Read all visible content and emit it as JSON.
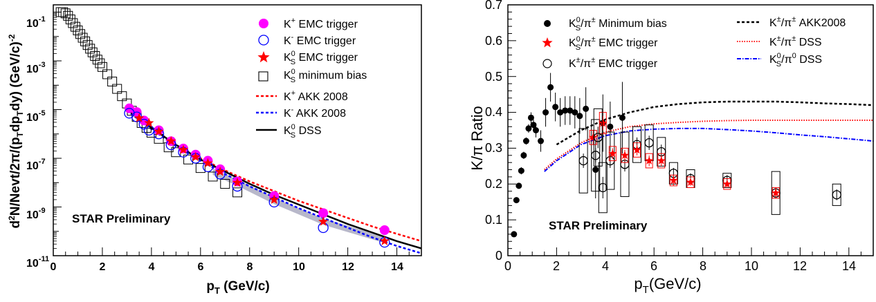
{
  "chart_data": [
    {
      "type": "scatter",
      "ylabel": "d²N/Nevt/2π/(p_T dp_T dy) (GeV/c)^-2",
      "ylabel_parts": {
        "main": "d",
        "sup2": "2",
        "n": "N/Nevt/2",
        "pi": "π",
        "slash": "/(p",
        "t1": "T",
        "dp": "dp",
        "t2": "T",
        "dy": "dy) (GeV/c)",
        "neg2": "-2"
      },
      "xlabel_parts": {
        "p": "p",
        "t": "T",
        "units": " (GeV/c)"
      },
      "xlim": [
        0,
        15
      ],
      "ylim_log10": [
        -11,
        -0.7
      ],
      "ylog": true,
      "xticks": [
        "0",
        "2",
        "4",
        "6",
        "8",
        "10",
        "12",
        "14"
      ],
      "yticks": [
        {
          "base": "10",
          "exp": "-1"
        },
        {
          "base": "10",
          "exp": "-3"
        },
        {
          "base": "10",
          "exp": "-5"
        },
        {
          "base": "10",
          "exp": "-7"
        },
        {
          "base": "10",
          "exp": "-9"
        },
        {
          "base": "10",
          "exp": "-11"
        }
      ],
      "annotation": "STAR Preliminary",
      "legend": {
        "placement": "top-right",
        "entries": [
          {
            "key": "kplus",
            "pre": "K",
            "sup": "+",
            "sub": "",
            "post": " EMC trigger"
          },
          {
            "key": "kminus",
            "pre": "K",
            "sup": "-",
            "sub": "",
            "post": " EMC trigger"
          },
          {
            "key": "k0s",
            "pre": "K",
            "sup": "0",
            "sub": "S",
            "post": " EMC trigger"
          },
          {
            "key": "k0mb",
            "pre": "K",
            "sup": "0",
            "sub": "S",
            "post": " minimum bias"
          },
          {
            "key": "akk_plus",
            "pre": "K",
            "sup": "+",
            "sub": "",
            "post": " AKK 2008"
          },
          {
            "key": "akk_minus",
            "pre": "K",
            "sup": "-",
            "sub": "",
            "post": " AKK 2008"
          },
          {
            "key": "dss",
            "pre": "K",
            "sup": "0",
            "sub": "S",
            "post": " DSS"
          }
        ]
      },
      "series": [
        {
          "key": "k0mb",
          "marker": "open-square",
          "color": "#000000",
          "x": [
            0.3,
            0.4,
            0.5,
            0.6,
            0.7,
            0.8,
            0.9,
            1.0,
            1.1,
            1.2,
            1.3,
            1.4,
            1.5,
            1.6,
            1.7,
            1.8,
            1.9,
            2.0,
            2.2,
            2.4,
            2.6,
            2.8,
            3.0,
            3.2,
            3.4,
            3.6,
            3.8,
            4.0,
            4.3,
            4.7,
            5.0,
            5.5,
            6.0,
            6.5,
            7.0,
            7.5
          ],
          "log10y": [
            -1.0,
            -1.0,
            -1.05,
            -1.15,
            -1.3,
            -1.45,
            -1.6,
            -1.75,
            -1.9,
            -2.05,
            -2.2,
            -2.35,
            -2.5,
            -2.65,
            -2.8,
            -2.95,
            -3.1,
            -3.25,
            -3.55,
            -3.85,
            -4.15,
            -4.45,
            -4.75,
            -5.05,
            -5.3,
            -5.55,
            -5.75,
            -5.95,
            -6.2,
            -6.55,
            -6.75,
            -7.05,
            -7.4,
            -7.75,
            -8.05,
            -8.4
          ]
        },
        {
          "key": "kplus",
          "marker": "filled-circle",
          "color": "#ff00ff",
          "x": [
            3.1,
            3.4,
            3.7,
            4.3,
            4.8,
            5.3,
            5.8,
            6.3,
            6.8,
            7.5,
            9.0,
            11.0,
            13.5
          ],
          "log10y": [
            -4.95,
            -5.1,
            -5.45,
            -5.85,
            -6.3,
            -6.6,
            -6.85,
            -7.1,
            -7.45,
            -7.95,
            -8.55,
            -9.25,
            -9.95
          ]
        },
        {
          "key": "kminus",
          "marker": "open-circle",
          "color": "#0000ff",
          "x": [
            3.1,
            3.4,
            3.7,
            3.9,
            4.3,
            4.8,
            5.3,
            5.8,
            6.3,
            6.8,
            7.5,
            9.0,
            11.0,
            13.5
          ],
          "log10y": [
            -5.15,
            -5.3,
            -5.6,
            -5.85,
            -6.0,
            -6.45,
            -6.75,
            -7.0,
            -7.35,
            -7.65,
            -8.15,
            -8.8,
            -9.85,
            -10.45
          ]
        },
        {
          "key": "k0s",
          "marker": "filled-star",
          "color": "#ff0000",
          "x": [
            3.5,
            3.9,
            4.3,
            4.8,
            5.3,
            5.8,
            6.3,
            6.8,
            7.5,
            9.0,
            11.0,
            13.5
          ],
          "log10y": [
            -5.35,
            -5.55,
            -5.9,
            -6.3,
            -6.65,
            -6.95,
            -7.2,
            -7.55,
            -8.0,
            -8.7,
            -9.6,
            -10.4
          ]
        }
      ],
      "curves": [
        {
          "key": "akk_plus",
          "style": "dashed",
          "color": "#ff0000",
          "x": [
            3.0,
            4.0,
            5.0,
            6.0,
            7.0,
            8.0,
            9.0,
            10.0,
            11.0,
            12.0,
            13.0,
            14.0,
            15.0
          ],
          "log10y": [
            -5.0,
            -5.75,
            -6.45,
            -7.0,
            -7.5,
            -7.95,
            -8.35,
            -8.75,
            -9.1,
            -9.45,
            -9.8,
            -10.1,
            -10.4
          ]
        },
        {
          "key": "akk_minus",
          "style": "dashed",
          "color": "#0000ff",
          "x": [
            3.0,
            4.0,
            5.0,
            6.0,
            7.0,
            8.0,
            9.0,
            10.0,
            11.0,
            12.0,
            13.0,
            14.0,
            15.0
          ],
          "log10y": [
            -5.05,
            -5.8,
            -6.5,
            -7.1,
            -7.65,
            -8.15,
            -8.6,
            -9.05,
            -9.45,
            -9.85,
            -10.25,
            -10.6,
            -10.9
          ]
        },
        {
          "key": "dss",
          "style": "solid",
          "color": "#000000",
          "x": [
            3.0,
            4.0,
            5.0,
            6.0,
            7.0,
            8.0,
            9.0,
            10.0,
            11.0,
            12.0,
            13.0,
            14.0,
            15.0
          ],
          "log10y": [
            -5.0,
            -5.75,
            -6.45,
            -7.05,
            -7.55,
            -8.05,
            -8.5,
            -8.9,
            -9.3,
            -9.7,
            -10.05,
            -10.4,
            -10.7
          ]
        }
      ],
      "band": {
        "color": "#a0a0b8",
        "x": [
          6.5,
          7.5,
          9.0,
          11.0,
          13.5
        ],
        "log10y": [
          -7.55,
          -8.0,
          -8.75,
          -9.6,
          -10.35
        ]
      }
    },
    {
      "type": "scatter",
      "ylabel_parts": {
        "k": "K/",
        "pi": "π",
        "ratio": " Ratio"
      },
      "xlabel_parts": {
        "p": "p",
        "t": "T",
        "units": "(GeV/c)"
      },
      "xlim": [
        0,
        15
      ],
      "ylim": [
        0,
        0.7
      ],
      "xticks": [
        "0",
        "2",
        "4",
        "6",
        "8",
        "10",
        "12",
        "14"
      ],
      "yticks": [
        "0",
        "0.1",
        "0.2",
        "0.3",
        "0.4",
        "0.5",
        "0.6",
        "0.7"
      ],
      "annotation": "STAR Preliminary",
      "legend": {
        "placement": "top",
        "entries": [
          {
            "key": "mb",
            "text": "K_S^0/π^± Minimum bias",
            "a": "K",
            "sub": "S",
            "sup": "0",
            "b": "/π",
            "sup2": "±",
            "c": " Minimum bias"
          },
          {
            "key": "emc0",
            "text": "K_S^0/π^± EMC trigger",
            "a": "K",
            "sub": "S",
            "sup": "0",
            "b": "/π",
            "sup2": "±",
            "c": " EMC trigger"
          },
          {
            "key": "emcpm",
            "text": "K^±/π^± EMC trigger",
            "a": "K",
            "sub": "",
            "sup": "±",
            "b": "/π",
            "sup2": "±",
            "c": " EMC trigger"
          },
          {
            "key": "akk",
            "text": "K^±/π^± AKK2008",
            "a": "K",
            "sub": "",
            "sup": "±",
            "b": "/π",
            "sup2": "±",
            "c": " AKK2008"
          },
          {
            "key": "dsspm",
            "text": "K^±/π^± DSS",
            "a": "K",
            "sub": "",
            "sup": "±",
            "b": "/π",
            "sup2": "±",
            "c": " DSS"
          },
          {
            "key": "dss0",
            "text": "K_S^0/π^0 DSS",
            "a": "K",
            "sub": "S",
            "sup": "0",
            "b": "/π",
            "sup2": "0",
            "c": " DSS"
          }
        ]
      },
      "series": [
        {
          "key": "mb",
          "marker": "filled-circle",
          "color": "#000000",
          "x": [
            0.25,
            0.35,
            0.45,
            0.55,
            0.65,
            0.75,
            0.85,
            0.95,
            1.05,
            1.15,
            1.35,
            1.55,
            1.75,
            1.95,
            2.15,
            2.35,
            2.55,
            2.75,
            2.95,
            3.2,
            3.6,
            3.9,
            4.2,
            4.7
          ],
          "y": [
            0.06,
            0.155,
            0.195,
            0.237,
            0.28,
            0.32,
            0.355,
            0.385,
            0.365,
            0.35,
            0.32,
            0.4,
            0.47,
            0.415,
            0.4,
            0.405,
            0.405,
            0.4,
            0.39,
            0.41,
            0.24,
            0.37,
            0.36,
            0.385
          ],
          "err": [
            0.005,
            0.006,
            0.008,
            0.01,
            0.01,
            0.01,
            0.012,
            0.015,
            0.015,
            0.02,
            0.03,
            0.04,
            0.04,
            0.04,
            0.04,
            0.04,
            0.04,
            0.045,
            0.05,
            0.06,
            0.08,
            0.08,
            0.07,
            0.1
          ]
        },
        {
          "key": "emcpm",
          "marker": "open-circle",
          "color": "#000000",
          "x": [
            3.1,
            3.6,
            4.2,
            4.8,
            5.3,
            5.8,
            6.3,
            6.8,
            7.5,
            9.0,
            11.0,
            13.5
          ],
          "y": [
            0.265,
            0.28,
            0.265,
            0.255,
            0.31,
            0.315,
            0.29,
            0.23,
            0.215,
            0.21,
            0.175,
            0.17
          ],
          "err": [
            0.02,
            0.02,
            0.02,
            0.02,
            0.02,
            0.02,
            0.02,
            0.015,
            0.015,
            0.015,
            0.015,
            0.015
          ],
          "sys": [
            0.09,
            0.1,
            0.08,
            0.09,
            0.05,
            0.05,
            0.04,
            0.03,
            0.025,
            0.02,
            0.06,
            0.03
          ]
        },
        {
          "key": "emc0",
          "marker": "filled-star",
          "color": "#ff0000",
          "x": [
            3.5,
            3.9,
            4.3,
            4.8,
            5.3,
            5.8,
            6.3,
            6.8,
            7.5,
            9.0,
            11.0
          ],
          "y": [
            0.33,
            0.37,
            0.285,
            0.28,
            0.295,
            0.265,
            0.265,
            0.21,
            0.205,
            0.2,
            0.175
          ],
          "err": [
            0.02,
            0.02,
            0.015,
            0.015,
            0.015,
            0.015,
            0.015,
            0.015,
            0.01,
            0.01,
            0.015
          ],
          "sys": [
            0.02,
            0.03,
            0.02,
            0.02,
            0.02,
            0.02,
            0.02,
            0.015,
            0.015,
            0.015,
            0.015
          ]
        },
        {
          "key": "mbopen",
          "marker": "open-circle",
          "color": "#000000",
          "x": [
            3.7,
            3.9
          ],
          "y": [
            0.33,
            0.19
          ],
          "err": [
            0.03,
            0.03
          ],
          "sys": [
            0.08,
            0.07
          ]
        }
      ],
      "curves": [
        {
          "key": "akk",
          "style": "dashed",
          "color": "#000000",
          "x": [
            2.0,
            3.0,
            4.0,
            5.0,
            6.0,
            7.0,
            8.0,
            9.0,
            10.0,
            11.0,
            12.0,
            13.0,
            14.0,
            15.0
          ],
          "y": [
            0.31,
            0.35,
            0.38,
            0.4,
            0.415,
            0.423,
            0.428,
            0.43,
            0.43,
            0.43,
            0.428,
            0.425,
            0.423,
            0.42
          ]
        },
        {
          "key": "dsspm",
          "style": "dotted",
          "color": "#ff0000",
          "x": [
            1.5,
            2.0,
            3.0,
            4.0,
            5.0,
            6.0,
            7.0,
            8.0,
            9.0,
            10.0,
            11.0,
            12.0,
            13.0,
            14.0,
            15.0
          ],
          "y": [
            0.24,
            0.27,
            0.315,
            0.345,
            0.36,
            0.368,
            0.372,
            0.375,
            0.377,
            0.378,
            0.378,
            0.378,
            0.378,
            0.378,
            0.378
          ]
        },
        {
          "key": "dss0",
          "style": "dashdot",
          "color": "#0000ff",
          "x": [
            1.5,
            2.0,
            3.0,
            4.0,
            5.0,
            6.0,
            7.0,
            8.0,
            9.0,
            10.0,
            11.0,
            12.0,
            13.0,
            14.0,
            15.0
          ],
          "y": [
            0.235,
            0.265,
            0.31,
            0.335,
            0.348,
            0.353,
            0.355,
            0.355,
            0.352,
            0.348,
            0.343,
            0.337,
            0.332,
            0.326,
            0.32
          ]
        }
      ]
    }
  ]
}
